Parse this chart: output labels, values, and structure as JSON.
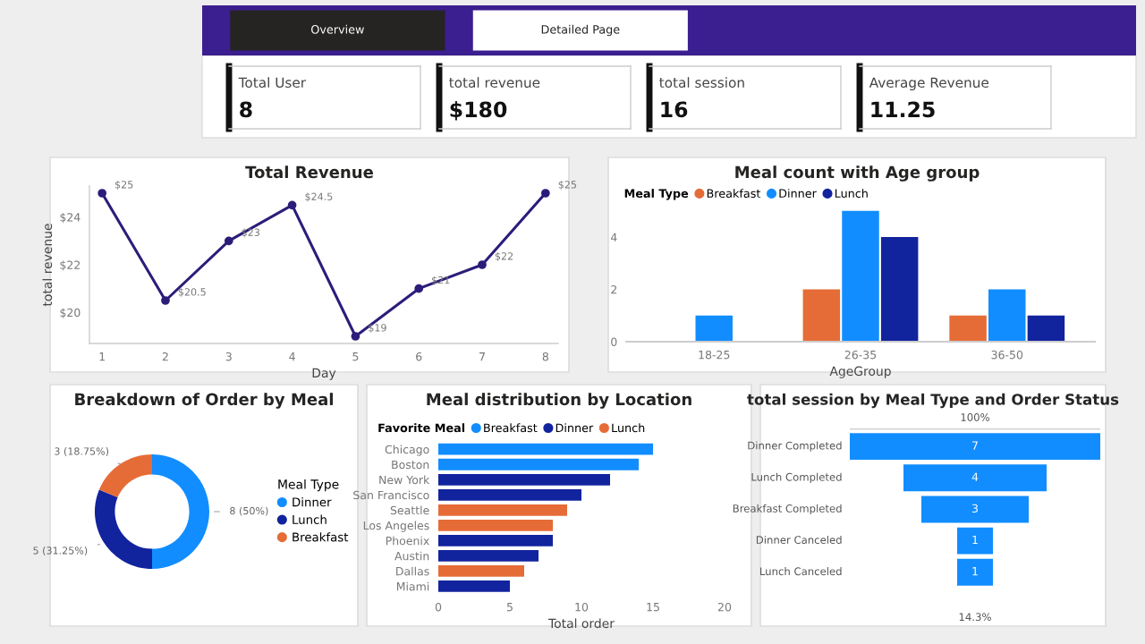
{
  "chart_data": [
    {
      "type": "other",
      "annotations": [
        "Overview",
        "Detailed Page"
      ],
      "colors": [
        "#3b1e8f",
        "#252423",
        "#ffffff"
      ]
    },
    {
      "type": "other",
      "title": "Total User",
      "annotations": [
        "8"
      ]
    },
    {
      "type": "other",
      "title": "total revenue",
      "annotations": [
        "$180"
      ]
    },
    {
      "type": "other",
      "title": "total session",
      "annotations": [
        "16"
      ]
    },
    {
      "type": "other",
      "title": "Average Revenue",
      "annotations": [
        "11.25"
      ]
    },
    {
      "type": "line",
      "title": "Total Revenue",
      "xlabel": "Day",
      "ylabel": "total revenue",
      "x": [
        1,
        2,
        3,
        4,
        5,
        6,
        7,
        8
      ],
      "series": [
        {
          "color": "#2b1d7a",
          "values": [
            25,
            20.5,
            23,
            24.5,
            19,
            21,
            22,
            25
          ],
          "value_labels": [
            "$25",
            "$20.5",
            "$23",
            "$24.5",
            "$19",
            "$21",
            "$22",
            "$25"
          ]
        }
      ],
      "xlim": [
        0.8,
        8.2
      ],
      "xticks": [
        1,
        2,
        3,
        4,
        5,
        6,
        7,
        8
      ],
      "ylim": [
        18.7,
        25.3
      ],
      "yticks": [
        {
          "value": 20,
          "label": "$20"
        },
        {
          "value": 22,
          "label": "$22"
        },
        {
          "value": 24,
          "label": "$24"
        }
      ],
      "marker": "circle",
      "line_style": "solid",
      "grid": false
    },
    {
      "type": "bar",
      "title": "Meal count with Age group",
      "xlabel": "AgeGroup",
      "legend_title": "Meal Type",
      "categories": [
        "18-25",
        "26-35",
        "36-50"
      ],
      "series": [
        {
          "name": "Breakfast",
          "color": "#e66c37",
          "values": [
            null,
            2,
            1
          ]
        },
        {
          "name": "Dinner",
          "color": "#118dff",
          "values": [
            1,
            5,
            2
          ]
        },
        {
          "name": "Lunch",
          "color": "#12239e",
          "values": [
            null,
            4,
            1
          ]
        }
      ],
      "ylim": [
        0,
        5.2
      ],
      "yticks": [
        0,
        2,
        4
      ],
      "legend": "top left",
      "grid": false
    },
    {
      "type": "donut",
      "title": "Breakdown of Order by Meal",
      "legend_title": "Meal Type",
      "categories": [
        "Dinner",
        "Lunch",
        "Breakfast"
      ],
      "values": [
        8,
        5,
        3
      ],
      "colors": [
        "#118dff",
        "#12239e",
        "#e66c37"
      ],
      "value_labels": [
        "8 (50%)",
        "5 (31.25%)",
        "3 (18.75%)"
      ],
      "legend": "right"
    },
    {
      "type": "bar",
      "orientation": "horizontal",
      "stacked": true,
      "title": "Meal distribution by Location",
      "xlabel": "Total order",
      "legend_title": "Favorite Meal",
      "categories": [
        "Chicago",
        "Boston",
        "New York",
        "San Francisco",
        "Seattle",
        "Los Angeles",
        "Phoenix",
        "Austin",
        "Dallas",
        "Miami"
      ],
      "series": [
        {
          "name": "Breakfast",
          "color": "#118dff",
          "values": [
            15,
            14,
            null,
            null,
            null,
            null,
            null,
            null,
            null,
            null
          ]
        },
        {
          "name": "Dinner",
          "color": "#12239e",
          "values": [
            null,
            null,
            12,
            10,
            null,
            null,
            8,
            7,
            null,
            5
          ]
        },
        {
          "name": "Lunch",
          "color": "#e66c37",
          "values": [
            null,
            null,
            null,
            null,
            9,
            8,
            null,
            null,
            6,
            null
          ]
        }
      ],
      "xlim": [
        0,
        20
      ],
      "xticks": [
        0,
        5,
        10,
        15,
        20
      ],
      "legend": "top left",
      "grid": false
    },
    {
      "type": "other",
      "title": "total session by Meal Type and Order Status",
      "categories": [
        "Dinner Completed",
        "Lunch Completed",
        "Breakfast Completed",
        "Dinner Canceled",
        "Lunch Canceled"
      ],
      "values": [
        7,
        4,
        3,
        1,
        1
      ],
      "color": "#118dff",
      "data_labels": true,
      "annotations": [
        "100%",
        "14.3%"
      ]
    }
  ]
}
